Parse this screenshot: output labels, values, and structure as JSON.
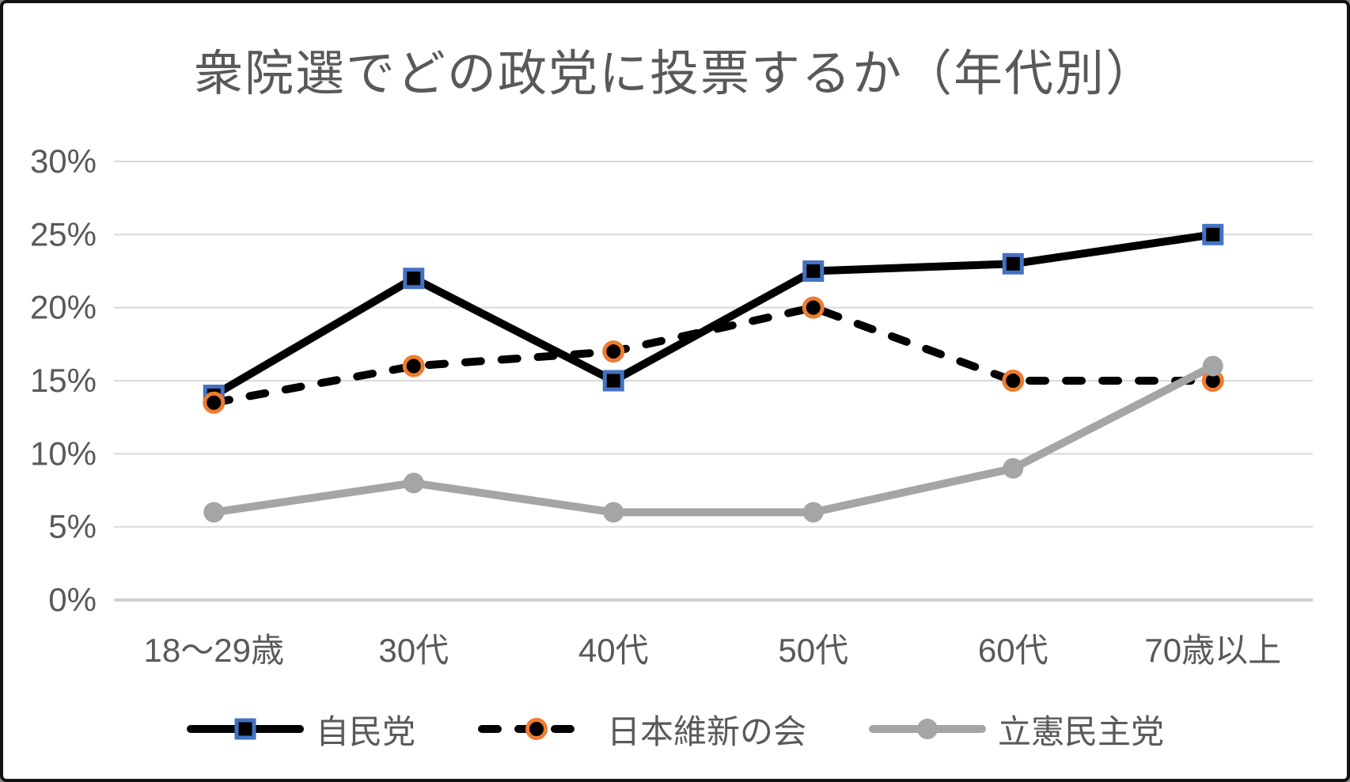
{
  "chart_data": {
    "type": "line",
    "title": "衆院選でどの政党に投票するか（年代別）",
    "categories": [
      "18〜29歳",
      "30代",
      "40代",
      "50代",
      "60代",
      "70歳以上"
    ],
    "series": [
      {
        "name": "自民党",
        "values": [
          14,
          22,
          15,
          22.5,
          23,
          25
        ],
        "line_color": "#000000",
        "line_style": "solid",
        "marker": "square",
        "marker_fill": "#000000",
        "marker_border": "#4472C4"
      },
      {
        "name": "日本維新の会",
        "values": [
          13.5,
          16,
          17,
          20,
          15,
          15
        ],
        "line_color": "#000000",
        "line_style": "dashed",
        "marker": "circle",
        "marker_fill": "#000000",
        "marker_border": "#ED7D31"
      },
      {
        "name": "立憲民主党",
        "values": [
          6,
          8,
          6,
          6,
          9,
          16
        ],
        "line_color": "#A5A5A5",
        "line_style": "solid",
        "marker": "circle",
        "marker_fill": "#A5A5A5",
        "marker_border": "#A5A5A5"
      }
    ],
    "y_axis": {
      "min": 0,
      "max": 30,
      "step": 5,
      "tick_labels": [
        "0%",
        "5%",
        "10%",
        "15%",
        "20%",
        "25%",
        "30%"
      ]
    },
    "grid": true,
    "legend_position": "bottom",
    "colors": {
      "text": "#595959",
      "gridline": "#D9D9D9",
      "axis_line": "#D0D0D0",
      "background": "#FFFFFF",
      "frame_border": "#111111",
      "ldp_blue_edge": "#4472C4",
      "ishin_orange_edge": "#ED7D31",
      "cdp_gray": "#A5A5A5"
    }
  }
}
